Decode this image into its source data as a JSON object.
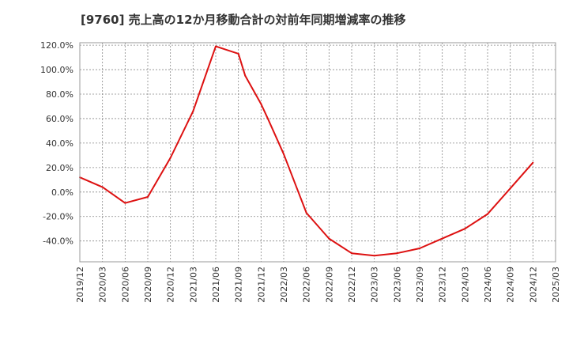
{
  "chart_data": {
    "type": "line",
    "title": "[9760]  売上高の12か月移動合計の対前年同期増減率の推移",
    "xlabel": "",
    "ylabel": "",
    "ylim": [
      -57,
      122
    ],
    "y_ticks": [
      120,
      100,
      80,
      60,
      40,
      20,
      0,
      -20,
      -40
    ],
    "y_tick_labels": [
      "120.0%",
      "100.0%",
      "80.0%",
      "60.0%",
      "40.0%",
      "20.0%",
      "0.0%",
      "-20.0%",
      "-40.0%"
    ],
    "x_tick_labels": [
      "2019/12",
      "2020/03",
      "2020/06",
      "2020/09",
      "2020/12",
      "2021/03",
      "2021/06",
      "2021/09",
      "2021/12",
      "2022/03",
      "2022/06",
      "2022/09",
      "2022/12",
      "2023/03",
      "2023/06",
      "2023/09",
      "2023/12",
      "2024/03",
      "2024/06",
      "2024/09",
      "2024/12",
      "2025/03"
    ],
    "grid": true,
    "series": [
      {
        "name": "増減率",
        "color": "#dd1111",
        "x": [
          0,
          1,
          2,
          3,
          4,
          5,
          6,
          7,
          7.3,
          8,
          8.3,
          9,
          10,
          11,
          12,
          13,
          14,
          15,
          16,
          17,
          18,
          19,
          20
        ],
        "values": [
          12,
          4,
          -9,
          -4,
          28,
          66,
          119,
          113,
          95,
          72,
          60,
          31,
          -17,
          -38,
          -50,
          -52,
          -50,
          -46,
          -38,
          -30,
          -18,
          3,
          24
        ]
      }
    ]
  }
}
